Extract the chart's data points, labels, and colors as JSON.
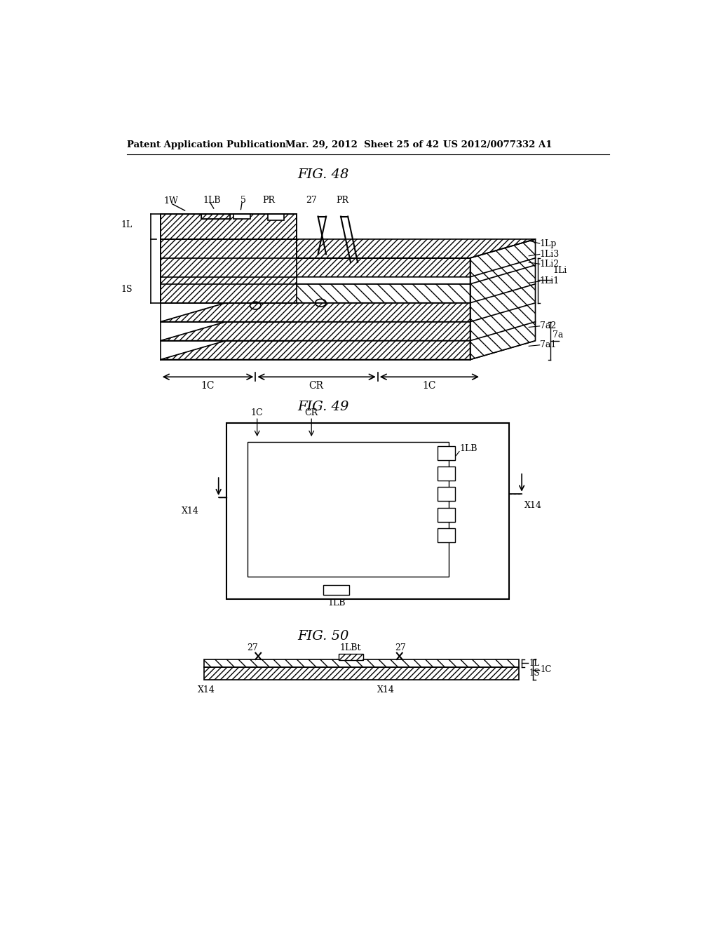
{
  "bg_color": "#ffffff",
  "text_color": "#000000",
  "header_left": "Patent Application Publication",
  "header_mid": "Mar. 29, 2012  Sheet 25 of 42",
  "header_right": "US 2012/0077332 A1",
  "fig48_title": "FIG. 48",
  "fig49_title": "FIG. 49",
  "fig50_title": "FIG. 50",
  "line_color": "#000000",
  "hatch_color": "#000000"
}
